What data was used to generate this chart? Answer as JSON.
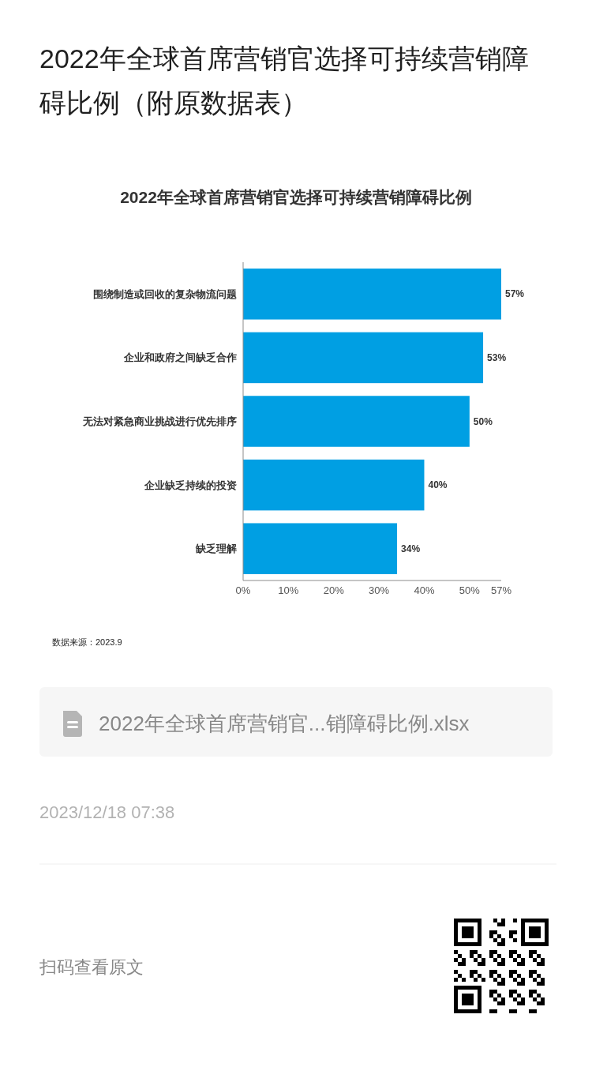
{
  "chart_data": {
    "type": "bar",
    "orientation": "horizontal",
    "title": "2022年全球首席营销官选择可持续营销障碍比例（附原数据表）",
    "subtitle": "2022年全球首席营销官选择可持续营销障碍比例",
    "categories": [
      "围绕制造或回收的复杂物流问题",
      "企业和政府之间缺乏合作",
      "无法对紧急商业挑战进行优先排序",
      "企业缺乏持续的投资",
      "缺乏理解"
    ],
    "values": [
      57,
      53,
      50,
      40,
      34
    ],
    "value_labels": [
      "57%",
      "53%",
      "50%",
      "40%",
      "34%"
    ],
    "color": "#009fe3",
    "xlim": [
      0,
      57
    ],
    "xticks": [
      {
        "value": 0,
        "label": "0%"
      },
      {
        "value": 10,
        "label": "10%"
      },
      {
        "value": 20,
        "label": "20%"
      },
      {
        "value": 30,
        "label": "30%"
      },
      {
        "value": 40,
        "label": "40%"
      },
      {
        "value": 50,
        "label": "50%"
      },
      {
        "value": 57,
        "label": "57%"
      }
    ],
    "annotations": [
      "数据来源：2023.9",
      "2022年全球首席营销官...销障碍比例.xlsx",
      "2023/12/18 07:38",
      "扫码查看原文"
    ]
  }
}
